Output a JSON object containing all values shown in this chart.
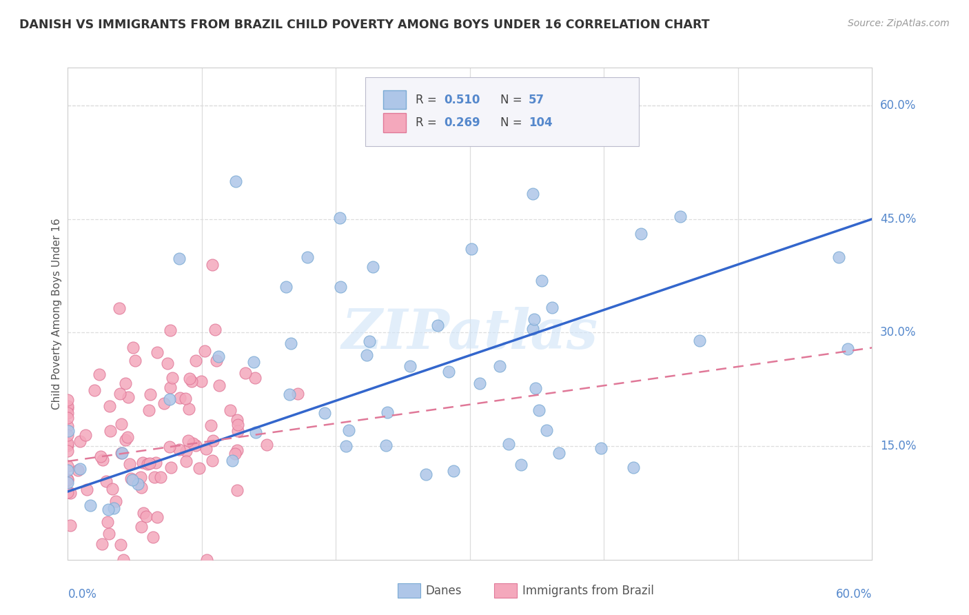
{
  "title": "DANISH VS IMMIGRANTS FROM BRAZIL CHILD POVERTY AMONG BOYS UNDER 16 CORRELATION CHART",
  "source": "Source: ZipAtlas.com",
  "ylabel": "Child Poverty Among Boys Under 16",
  "ytick_labels": [
    "15.0%",
    "30.0%",
    "45.0%",
    "60.0%"
  ],
  "ytick_values": [
    0.15,
    0.3,
    0.45,
    0.6
  ],
  "xlim": [
    0.0,
    0.6
  ],
  "ylim": [
    0.0,
    0.65
  ],
  "danes_color": "#aec6e8",
  "danes_edge_color": "#7aaad4",
  "brazil_color": "#f4a8bc",
  "brazil_edge_color": "#e07898",
  "danes_line_color": "#3366cc",
  "brazil_line_color": "#e07898",
  "brazil_line_style": "dashed",
  "grid_color": "#dddddd",
  "grid_style": "dashed",
  "top_grid_style": "dashed",
  "danes_R": 0.51,
  "danes_N": 57,
  "brazil_R": 0.269,
  "brazil_N": 104,
  "watermark": "ZIPatlas",
  "watermark_color": "#c8d8f0",
  "label_color": "#5588cc",
  "title_color": "#333333",
  "source_color": "#999999"
}
